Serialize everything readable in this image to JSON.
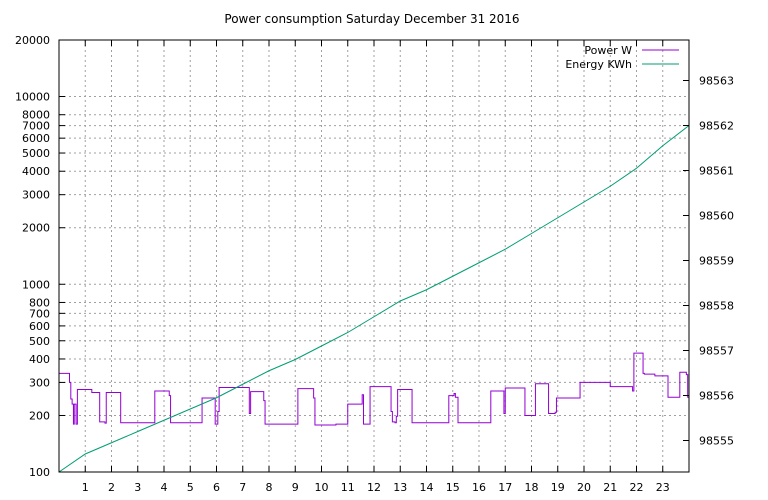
{
  "chart_data": {
    "type": "line",
    "title": "Power consumption Saturday December 31 2016",
    "y_scale": "log",
    "ylim": [
      100,
      20000
    ],
    "y2lim": [
      98554.3,
      98563.9
    ],
    "xlim": [
      0,
      24
    ],
    "x_ticks": [
      1,
      2,
      3,
      4,
      5,
      6,
      7,
      8,
      9,
      10,
      11,
      12,
      13,
      14,
      15,
      16,
      17,
      18,
      19,
      20,
      21,
      22,
      23
    ],
    "y_ticks": [
      100,
      200,
      300,
      400,
      500,
      600,
      700,
      800,
      1000,
      2000,
      3000,
      4000,
      5000,
      6000,
      7000,
      8000,
      10000,
      20000
    ],
    "y2_ticks": [
      98555,
      98556,
      98557,
      98558,
      98559,
      98560,
      98561,
      98562,
      98563
    ],
    "grid": true,
    "legend_position": "top-right",
    "series": [
      {
        "name": "Power W",
        "axis": "left",
        "color": "#9400d3",
        "step": true,
        "points": [
          [
            0,
            335
          ],
          [
            0.35,
            335
          ],
          [
            0.4,
            300
          ],
          [
            0.45,
            245
          ],
          [
            0.5,
            230
          ],
          [
            0.55,
            180
          ],
          [
            0.58,
            230
          ],
          [
            0.65,
            180
          ],
          [
            0.7,
            275
          ],
          [
            1.2,
            275
          ],
          [
            1.25,
            265
          ],
          [
            1.5,
            265
          ],
          [
            1.55,
            185
          ],
          [
            1.75,
            182
          ],
          [
            1.8,
            265
          ],
          [
            2.3,
            265
          ],
          [
            2.35,
            183
          ],
          [
            3.6,
            183
          ],
          [
            3.65,
            270
          ],
          [
            4.1,
            270
          ],
          [
            4.2,
            255
          ],
          [
            4.25,
            183
          ],
          [
            5.4,
            183
          ],
          [
            5.45,
            248
          ],
          [
            5.9,
            248
          ],
          [
            5.95,
            180
          ],
          [
            6.05,
            210
          ],
          [
            6.1,
            282
          ],
          [
            7.2,
            282
          ],
          [
            7.25,
            205
          ],
          [
            7.3,
            268
          ],
          [
            7.7,
            268
          ],
          [
            7.8,
            240
          ],
          [
            7.85,
            180
          ],
          [
            9.05,
            180
          ],
          [
            9.1,
            278
          ],
          [
            9.6,
            278
          ],
          [
            9.7,
            248
          ],
          [
            9.75,
            178
          ],
          [
            10.5,
            178
          ],
          [
            10.55,
            180
          ],
          [
            10.95,
            180
          ],
          [
            11,
            230
          ],
          [
            11.5,
            230
          ],
          [
            11.55,
            258
          ],
          [
            11.6,
            180
          ],
          [
            11.8,
            180
          ],
          [
            11.85,
            285
          ],
          [
            12.6,
            285
          ],
          [
            12.65,
            210
          ],
          [
            12.7,
            185
          ],
          [
            12.8,
            183
          ],
          [
            12.85,
            198
          ],
          [
            12.9,
            275
          ],
          [
            13.4,
            275
          ],
          [
            13.45,
            183
          ],
          [
            14.8,
            183
          ],
          [
            14.85,
            255
          ],
          [
            15,
            255
          ],
          [
            15.05,
            262
          ],
          [
            15.1,
            250
          ],
          [
            15.2,
            183
          ],
          [
            16.4,
            183
          ],
          [
            16.45,
            270
          ],
          [
            16.9,
            270
          ],
          [
            16.95,
            205
          ],
          [
            17,
            280
          ],
          [
            17.7,
            280
          ],
          [
            17.75,
            200
          ],
          [
            18.1,
            200
          ],
          [
            18.15,
            295
          ],
          [
            18.6,
            295
          ],
          [
            18.65,
            205
          ],
          [
            18.9,
            208
          ],
          [
            18.95,
            248
          ],
          [
            19.8,
            248
          ],
          [
            19.85,
            300
          ],
          [
            20.95,
            300
          ],
          [
            21,
            285
          ],
          [
            21.8,
            285
          ],
          [
            21.85,
            270
          ],
          [
            21.9,
            430
          ],
          [
            22.2,
            430
          ],
          [
            22.25,
            335
          ],
          [
            22.3,
            332
          ],
          [
            22.65,
            332
          ],
          [
            22.7,
            325
          ],
          [
            23.15,
            325
          ],
          [
            23.2,
            250
          ],
          [
            23.6,
            250
          ],
          [
            23.65,
            340
          ],
          [
            23.85,
            340
          ],
          [
            23.9,
            330
          ],
          [
            23.95,
            250
          ],
          [
            24,
            250
          ]
        ]
      },
      {
        "name": "Energy KWh",
        "axis": "right",
        "color": "#009e73",
        "step": false,
        "points": [
          [
            0,
            98554.3
          ],
          [
            1,
            98554.7
          ],
          [
            2,
            98554.95
          ],
          [
            3,
            98555.2
          ],
          [
            4,
            98555.45
          ],
          [
            5,
            98555.7
          ],
          [
            6,
            98555.95
          ],
          [
            7,
            98556.25
          ],
          [
            8,
            98556.55
          ],
          [
            9,
            98556.8
          ],
          [
            10,
            98557.1
          ],
          [
            11,
            98557.4
          ],
          [
            12,
            98557.75
          ],
          [
            13,
            98558.1
          ],
          [
            14,
            98558.35
          ],
          [
            15,
            98558.65
          ],
          [
            16,
            98558.95
          ],
          [
            17,
            98559.25
          ],
          [
            18,
            98559.6
          ],
          [
            19,
            98559.95
          ],
          [
            20,
            98560.3
          ],
          [
            21,
            98560.65
          ],
          [
            22,
            98561.05
          ],
          [
            23,
            98561.55
          ],
          [
            24,
            98562.0
          ]
        ]
      }
    ]
  }
}
